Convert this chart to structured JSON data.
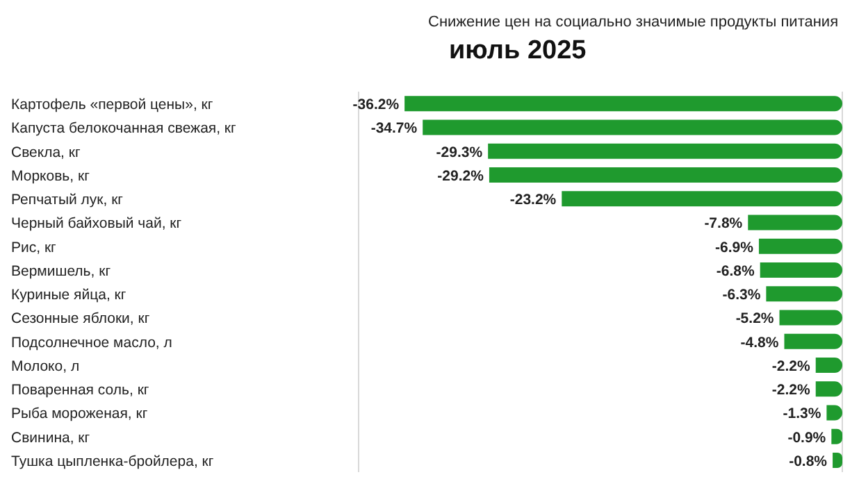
{
  "chart_data": {
    "type": "bar",
    "orientation": "horizontal",
    "title": "Снижение цен на социально значимые продукты питания",
    "subtitle": "июль 2025",
    "categories": [
      "Картофель «первой цены», кг",
      "Капуста белокочанная свежая, кг",
      "Свекла, кг",
      "Морковь, кг",
      "Репчатый лук, кг",
      "Черный байховый чай, кг",
      "Рис, кг",
      "Вермишель, кг",
      "Куриные яйца, кг",
      "Сезонные яблоки, кг",
      "Подсолнечное масло, л",
      "Молоко, л",
      "Поваренная соль, кг",
      "Рыба мороженая, кг",
      "Свинина, кг",
      "Тушка цыпленка-бройлера, кг"
    ],
    "values": [
      -36.2,
      -34.7,
      -29.3,
      -29.2,
      -23.2,
      -7.8,
      -6.9,
      -6.8,
      -6.3,
      -5.2,
      -4.8,
      -2.2,
      -2.2,
      -1.3,
      -0.9,
      -0.8
    ],
    "value_labels": [
      "-36.2%",
      "-34.7%",
      "-29.3%",
      "-29.2%",
      "-23.2%",
      "-7.8%",
      "-6.9%",
      "-6.8%",
      "-6.3%",
      "-5.2%",
      "-4.8%",
      "-2.2%",
      "-2.2%",
      "-1.3%",
      "-0.9%",
      "-0.8%"
    ],
    "color": "#1f9a2e",
    "xlim": [
      -40,
      0
    ],
    "grid": "x",
    "tick_labels": "y"
  }
}
